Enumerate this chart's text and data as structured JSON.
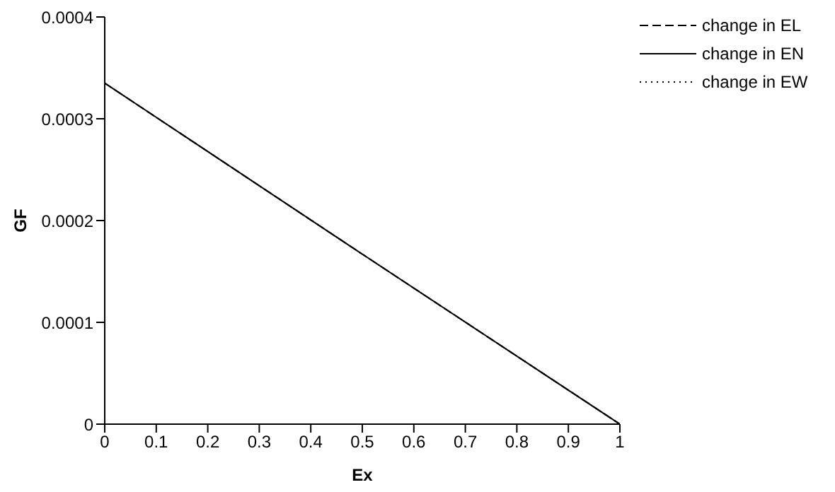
{
  "chart_data": {
    "type": "line",
    "xlabel": "Ex",
    "ylabel": "GF",
    "x": [
      0,
      0.5,
      1
    ],
    "series": [
      {
        "name": "change in EL",
        "color": "#000000",
        "line_style": "dashed",
        "values": [
          0.000335,
          0.000167,
          0
        ]
      },
      {
        "name": "change in EN",
        "color": "#000000",
        "line_style": "solid",
        "values": [
          0.000335,
          0.000167,
          0
        ]
      },
      {
        "name": "change in EW",
        "color": "#000000",
        "line_style": "dotted",
        "values": [
          0.000335,
          0.000167,
          0
        ]
      }
    ],
    "xlim": [
      0,
      1
    ],
    "xticks": [
      0,
      0.1,
      0.2,
      0.3,
      0.4,
      0.5,
      0.6,
      0.7,
      0.8,
      0.9,
      1
    ],
    "ylim": [
      0,
      0.0004
    ],
    "yticks": [
      0,
      0.0001,
      0.0002,
      0.0003,
      0.0004
    ],
    "grid": false,
    "legend": "top right",
    "marker": "none"
  }
}
